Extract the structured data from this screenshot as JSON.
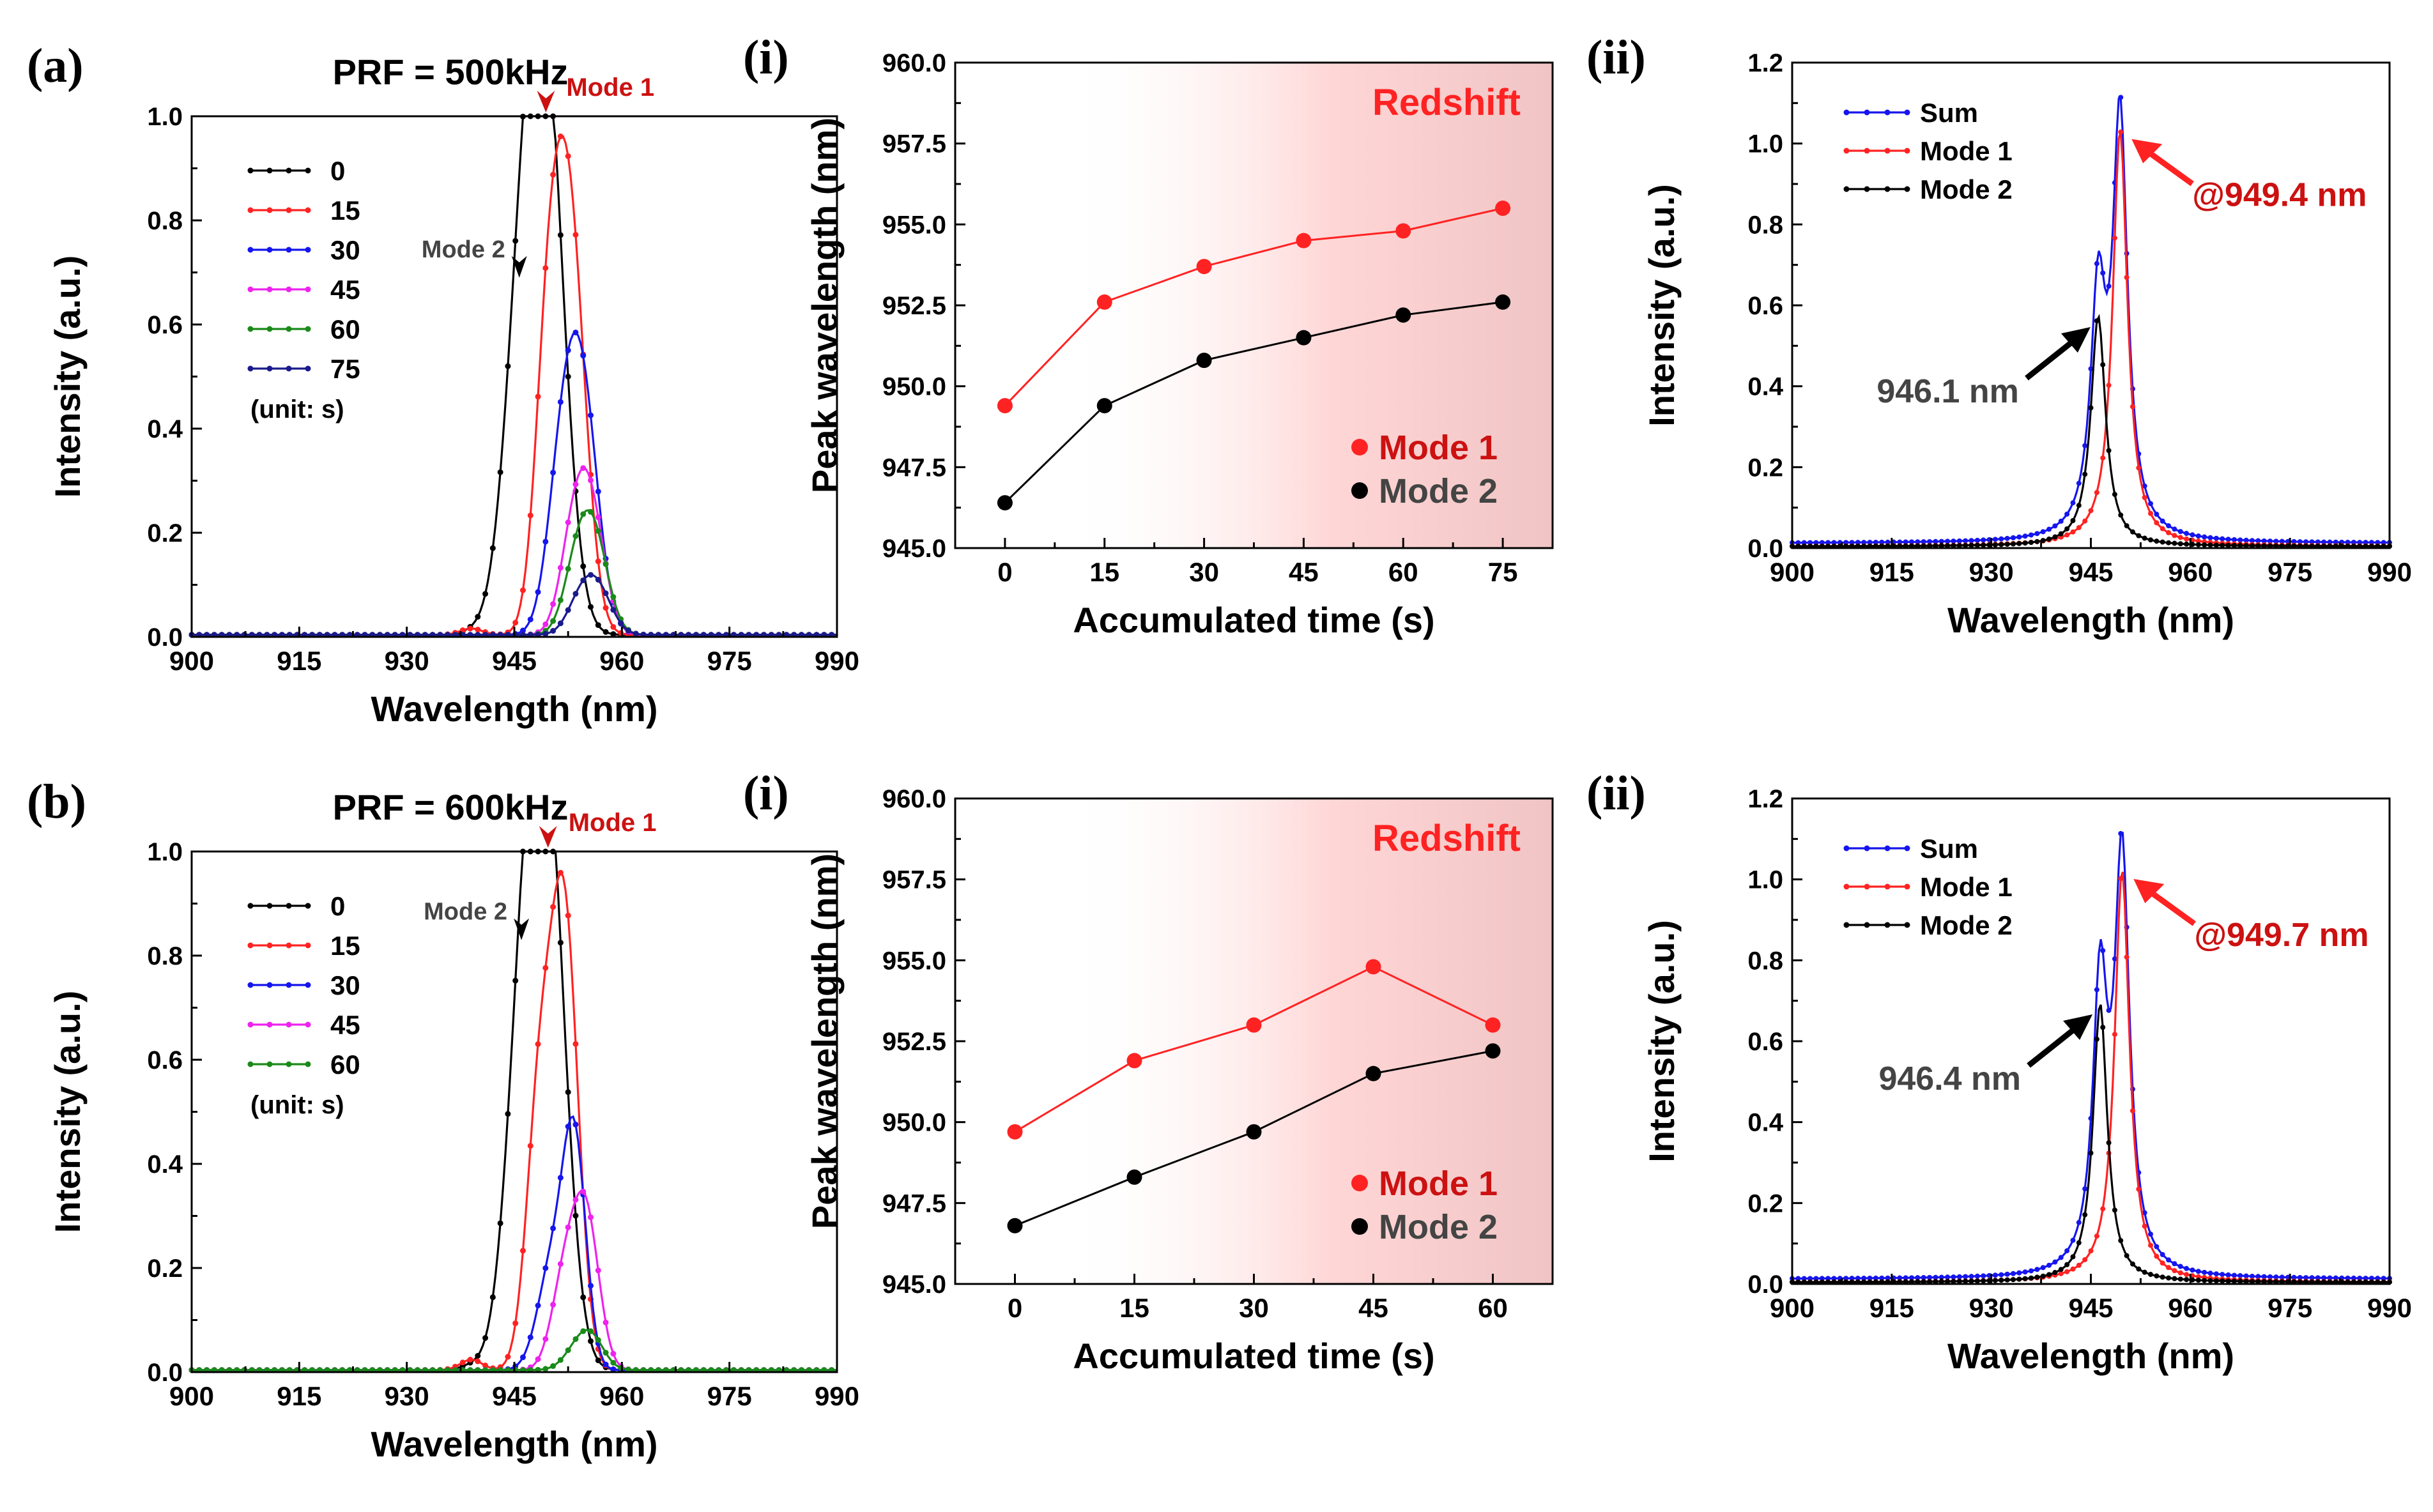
{
  "colors": {
    "black": "#000000",
    "red": "#ff2222",
    "blue": "#1515ee",
    "magenta": "#ee22ee",
    "green": "#1a8a1a",
    "navy": "#1a1a8c",
    "dark_red": "#cc1111",
    "gray_text": "#444444",
    "shade": "#f0c4c4"
  },
  "panels": [
    {
      "id": "a",
      "label": "(a)"
    },
    {
      "id": "ai",
      "label": "(i)"
    },
    {
      "id": "aii",
      "label": "(ii)"
    },
    {
      "id": "b",
      "label": "(b)"
    },
    {
      "id": "bi",
      "label": "(i)"
    },
    {
      "id": "bii",
      "label": "(ii)"
    }
  ],
  "chart_data": [
    {
      "id": "a",
      "type": "line",
      "title": "PRF = 500kHz",
      "xlabel": "Wavelength (nm)",
      "ylabel": "Intensity (a.u.)",
      "xlim": [
        900,
        990
      ],
      "ylim": [
        0,
        1.0
      ],
      "xticks": [
        "900",
        "915",
        "930",
        "945",
        "960",
        "975",
        "990"
      ],
      "yticks": [
        "0.0",
        "0.2",
        "0.4",
        "0.6",
        "0.8",
        "1.0"
      ],
      "legend_title_unit": "(unit: s)",
      "legend_position": "top-left",
      "annotations": [
        {
          "text": "Mode 1",
          "x": 949.4,
          "y": 1.0,
          "color": "dark_red"
        },
        {
          "text": "Mode 2",
          "x": 946.4,
          "y": 0.68,
          "color": "gray_text"
        }
      ],
      "series": [
        {
          "name": "0",
          "color": "black",
          "peaks": [
            {
              "c": 949.4,
              "a": 0.95,
              "w": 2.6
            },
            {
              "c": 946.2,
              "a": 0.55,
              "w": 2.6
            }
          ],
          "bump": 0.005
        },
        {
          "name": "15",
          "color": "red",
          "peaks": [
            {
              "c": 952.6,
              "a": 0.8,
              "w": 2.2
            },
            {
              "c": 949.6,
              "a": 0.44,
              "w": 1.8
            }
          ],
          "bump": 0.012
        },
        {
          "name": "30",
          "color": "blue",
          "peaks": [
            {
              "c": 954.4,
              "a": 0.46,
              "w": 2.2
            },
            {
              "c": 951.5,
              "a": 0.26,
              "w": 2.0
            }
          ],
          "bump": 0.0
        },
        {
          "name": "45",
          "color": "magenta",
          "peaks": [
            {
              "c": 955.5,
              "a": 0.25,
              "w": 2.0
            },
            {
              "c": 953.0,
              "a": 0.14,
              "w": 1.8
            }
          ],
          "bump": 0.0
        },
        {
          "name": "60",
          "color": "green",
          "peaks": [
            {
              "c": 956.0,
              "a": 0.19,
              "w": 2.0
            },
            {
              "c": 953.5,
              "a": 0.1,
              "w": 1.8
            }
          ],
          "bump": 0.0
        },
        {
          "name": "75",
          "color": "navy",
          "peaks": [
            {
              "c": 956.5,
              "a": 0.09,
              "w": 2.0
            },
            {
              "c": 954.0,
              "a": 0.05,
              "w": 1.8
            }
          ],
          "bump": 0.0
        }
      ]
    },
    {
      "id": "ai",
      "type": "scatter",
      "xlabel": "Accumulated time (s)",
      "ylabel": "Peak wavelength (nm)",
      "xlim": [
        -7.5,
        82.5
      ],
      "ylim": [
        945.0,
        960.0
      ],
      "xticks": [
        "0",
        "15",
        "30",
        "45",
        "60",
        "75"
      ],
      "yticks": [
        "945.0",
        "947.5",
        "950.0",
        "952.5",
        "955.0",
        "957.5",
        "960.0"
      ],
      "shade_label": "Redshift",
      "legend_position": "bottom-right",
      "x": [
        0,
        15,
        30,
        45,
        60,
        75
      ],
      "series": [
        {
          "name": "Mode 1",
          "color": "red",
          "values": [
            949.4,
            952.6,
            953.7,
            954.5,
            954.8,
            955.5
          ]
        },
        {
          "name": "Mode 2",
          "color": "black",
          "values": [
            946.4,
            949.4,
            950.8,
            951.5,
            952.2,
            952.6
          ]
        }
      ]
    },
    {
      "id": "aii",
      "type": "line",
      "xlabel": "Wavelength (nm)",
      "ylabel": "Intensity (a.u.)",
      "xlim": [
        900,
        990
      ],
      "ylim": [
        0,
        1.2
      ],
      "xticks": [
        "900",
        "915",
        "930",
        "945",
        "960",
        "975",
        "990"
      ],
      "yticks": [
        "0.0",
        "0.2",
        "0.4",
        "0.6",
        "0.8",
        "1.0",
        "1.2"
      ],
      "legend_position": "top-left",
      "annotations": [
        {
          "text": "@949.4 nm",
          "x": 949.4,
          "y": 1.03,
          "color": "dark_red"
        },
        {
          "text": "946.1 nm",
          "x": 946.1,
          "y": 0.57,
          "color": "gray_text"
        }
      ],
      "series": [
        {
          "name": "Sum",
          "color": "blue"
        },
        {
          "name": "Mode 1",
          "color": "red",
          "center": 949.4,
          "amplitude": 1.03,
          "hwhm": 1.35
        },
        {
          "name": "Mode 2",
          "color": "black",
          "center": 946.1,
          "amplitude": 0.57,
          "hwhm": 1.35
        }
      ]
    },
    {
      "id": "b",
      "type": "line",
      "title": "PRF = 600kHz",
      "xlabel": "Wavelength (nm)",
      "ylabel": "Intensity (a.u.)",
      "xlim": [
        900,
        990
      ],
      "ylim": [
        0,
        1.0
      ],
      "xticks": [
        "900",
        "915",
        "930",
        "945",
        "960",
        "975",
        "990"
      ],
      "yticks": [
        "0.0",
        "0.2",
        "0.4",
        "0.6",
        "0.8",
        "1.0"
      ],
      "legend_title_unit": "(unit: s)",
      "legend_position": "top-left",
      "annotations": [
        {
          "text": "Mode 1",
          "x": 949.7,
          "y": 1.0,
          "color": "dark_red"
        },
        {
          "text": "Mode 2",
          "x": 946.7,
          "y": 0.82,
          "color": "gray_text"
        }
      ],
      "series": [
        {
          "name": "0",
          "color": "black",
          "peaks": [
            {
              "c": 949.7,
              "a": 0.93,
              "w": 2.5
            },
            {
              "c": 946.5,
              "a": 0.66,
              "w": 2.5
            }
          ],
          "bump": 0.008
        },
        {
          "name": "15",
          "color": "red",
          "peaks": [
            {
              "c": 952.0,
              "a": 0.86,
              "w": 1.9
            },
            {
              "c": 948.5,
              "a": 0.5,
              "w": 1.8
            }
          ],
          "bump": 0.02
        },
        {
          "name": "30",
          "color": "blue",
          "peaks": [
            {
              "c": 953.4,
              "a": 0.42,
              "w": 1.6
            },
            {
              "c": 950.3,
              "a": 0.2,
              "w": 2.0
            }
          ],
          "bump": 0.0
        },
        {
          "name": "45",
          "color": "magenta",
          "peaks": [
            {
              "c": 955.0,
              "a": 0.29,
              "w": 1.8
            },
            {
              "c": 952.0,
              "a": 0.17,
              "w": 1.8
            }
          ],
          "bump": 0.0
        },
        {
          "name": "60",
          "color": "green",
          "peaks": [
            {
              "c": 955.7,
              "a": 0.06,
              "w": 1.8
            },
            {
              "c": 953.5,
              "a": 0.03,
              "w": 1.8
            }
          ],
          "bump": 0.0
        }
      ]
    },
    {
      "id": "bi",
      "type": "scatter",
      "xlabel": "Accumulated time (s)",
      "ylabel": "Peak wavelength (nm)",
      "xlim": [
        -7.5,
        67.5
      ],
      "ylim": [
        945.0,
        960.0
      ],
      "xticks": [
        "0",
        "15",
        "30",
        "45",
        "60"
      ],
      "yticks": [
        "945.0",
        "947.5",
        "950.0",
        "952.5",
        "955.0",
        "957.5",
        "960.0"
      ],
      "shade_label": "Redshift",
      "legend_position": "bottom-right",
      "x": [
        0,
        15,
        30,
        45,
        60
      ],
      "series": [
        {
          "name": "Mode 1",
          "color": "red",
          "values": [
            949.7,
            951.9,
            953.0,
            954.8,
            953.0
          ]
        },
        {
          "name": "Mode 2",
          "color": "black",
          "values": [
            946.8,
            948.3,
            949.7,
            951.5,
            952.2
          ]
        }
      ]
    },
    {
      "id": "bii",
      "type": "line",
      "xlabel": "Wavelength (nm)",
      "ylabel": "Intensity (a.u.)",
      "xlim": [
        900,
        990
      ],
      "ylim": [
        0,
        1.2
      ],
      "xticks": [
        "900",
        "915",
        "930",
        "945",
        "960",
        "975",
        "990"
      ],
      "yticks": [
        "0.0",
        "0.2",
        "0.4",
        "0.6",
        "0.8",
        "1.0",
        "1.2"
      ],
      "legend_position": "top-left",
      "annotations": [
        {
          "text": "@949.7 nm",
          "x": 949.7,
          "y": 1.02,
          "color": "dark_red"
        },
        {
          "text": "946.4 nm",
          "x": 946.4,
          "y": 0.69,
          "color": "gray_text"
        }
      ],
      "series": [
        {
          "name": "Sum",
          "color": "blue"
        },
        {
          "name": "Mode 1",
          "color": "red",
          "center": 949.7,
          "amplitude": 1.02,
          "hwhm": 1.35
        },
        {
          "name": "Mode 2",
          "color": "black",
          "center": 946.4,
          "amplitude": 0.69,
          "hwhm": 1.3
        }
      ]
    }
  ]
}
